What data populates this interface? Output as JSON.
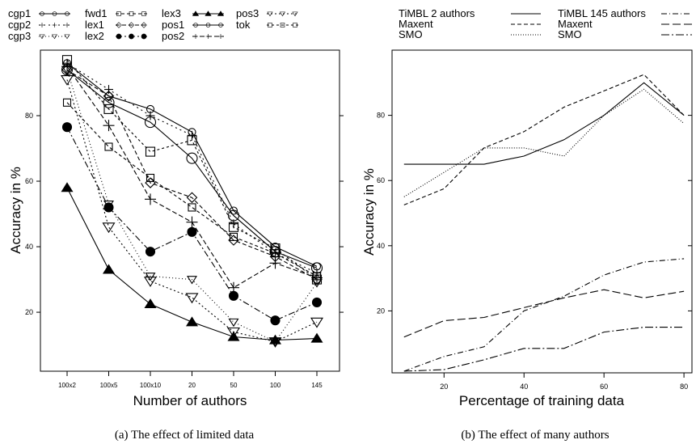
{
  "chart_data": [
    {
      "type": "line",
      "caption": "(a) The effect of limited data",
      "xlabel": "Number of authors",
      "ylabel": "Accuracy in %",
      "categories": [
        "100x2",
        "100x5",
        "100x10",
        "20",
        "50",
        "100",
        "145"
      ],
      "yticks": [
        20,
        40,
        60,
        80
      ],
      "ylim": [
        2,
        100
      ],
      "grid": false,
      "legend_position": "top",
      "series": [
        {
          "name": "cgp1",
          "dash": "",
          "marker": "circle-open",
          "values": [
            96,
            86,
            82,
            75,
            51,
            40,
            34
          ]
        },
        {
          "name": "cgp2",
          "dash": "2,4",
          "marker": "plus",
          "values": [
            96,
            88,
            80,
            74,
            47,
            38,
            32
          ]
        },
        {
          "name": "cgp3",
          "dash": "1,3",
          "marker": "triangle-down-open",
          "values": [
            94,
            53,
            31,
            30,
            17,
            11,
            29
          ]
        },
        {
          "name": "fwd1",
          "dash": "4,3",
          "marker": "square-open",
          "values": [
            84,
            70.5,
            61,
            52,
            43,
            38,
            31
          ]
        },
        {
          "name": "lex1",
          "dash": "5,3",
          "marker": "diamond-open",
          "values": [
            94,
            86,
            59.5,
            55,
            42,
            37,
            30
          ]
        },
        {
          "name": "lex2",
          "dash": "8,3,2,3",
          "marker": "circle-filled",
          "values": [
            76.5,
            52,
            38.5,
            44.5,
            25,
            17.5,
            23
          ]
        },
        {
          "name": "lex3",
          "dash": "",
          "marker": "triangle-up-filled",
          "values": [
            58,
            33,
            22.5,
            17,
            12.5,
            11.5,
            12
          ]
        },
        {
          "name": "pos1",
          "dash": "",
          "marker": "circle-open-large",
          "values": [
            94,
            84,
            78,
            67,
            49.5,
            38.5,
            33.5
          ]
        },
        {
          "name": "pos2",
          "dash": "6,3",
          "marker": "plus-large",
          "values": [
            95,
            77,
            54.5,
            47.5,
            27.5,
            35,
            30.5
          ]
        },
        {
          "name": "pos3",
          "dash": "2,3",
          "marker": "triangle-down-open-large",
          "values": [
            91,
            46,
            29.5,
            24.5,
            14,
            11,
            17
          ]
        },
        {
          "name": "tok",
          "dash": "3,3",
          "marker": "square-open-large",
          "values": [
            97,
            82,
            69,
            72.5,
            46,
            39.5,
            30
          ]
        }
      ],
      "legend_columns": [
        [
          "cgp1",
          "cgp2",
          "cgp3"
        ],
        [
          "fwd1",
          "lex1",
          "lex2"
        ],
        [
          "lex3",
          "pos1",
          "pos2"
        ],
        [
          "pos3",
          "tok"
        ]
      ]
    },
    {
      "type": "line",
      "caption": "(b) The effect of many authors",
      "xlabel": "Percentage of training data",
      "ylabel": "Accuracy in %",
      "xticks": [
        20,
        40,
        60,
        80
      ],
      "yticks": [
        20,
        40,
        60,
        80
      ],
      "xlim": [
        7,
        82
      ],
      "ylim": [
        1,
        100
      ],
      "grid": false,
      "legend_position": "top",
      "series": [
        {
          "name": "TiMBL 2 authors",
          "dash": "",
          "x": [
            10,
            20,
            30,
            40,
            50,
            60,
            70,
            80
          ],
          "values": [
            65,
            65,
            65,
            67.5,
            72.5,
            80,
            90,
            80
          ]
        },
        {
          "name": "Maxent",
          "dash": "5,3",
          "x": [
            10,
            20,
            30,
            40,
            50,
            60,
            70,
            80
          ],
          "values": [
            52.5,
            57.5,
            70,
            75,
            82.5,
            87.5,
            92.5,
            80
          ]
        },
        {
          "name": "SMO",
          "dash": "1,2",
          "x": [
            10,
            20,
            30,
            40,
            50,
            60,
            70,
            80
          ],
          "values": [
            55,
            62.5,
            70,
            70,
            67.5,
            80,
            88,
            77.5
          ]
        },
        {
          "name": "TiMBL 145 authors",
          "dash": "7,3,1,3",
          "x": [
            10,
            20,
            30,
            40,
            50,
            60,
            70,
            80
          ],
          "values": [
            1.5,
            6,
            9,
            20,
            24.5,
            31,
            35,
            36
          ]
        },
        {
          "name": "Maxent",
          "dash": "10,4",
          "x": [
            10,
            20,
            30,
            40,
            50,
            60,
            70,
            80
          ],
          "values": [
            12,
            17,
            18,
            21,
            24,
            26.5,
            24,
            26
          ]
        },
        {
          "name": "SMO",
          "dash": "10,3,2,3",
          "x": [
            10,
            20,
            30,
            40,
            50,
            60,
            70,
            80
          ],
          "values": [
            1.5,
            2,
            5,
            8.5,
            8.5,
            13.5,
            15,
            15
          ]
        }
      ],
      "legend_columns": [
        [
          0,
          1,
          2
        ],
        [
          3,
          4,
          5
        ]
      ]
    }
  ]
}
